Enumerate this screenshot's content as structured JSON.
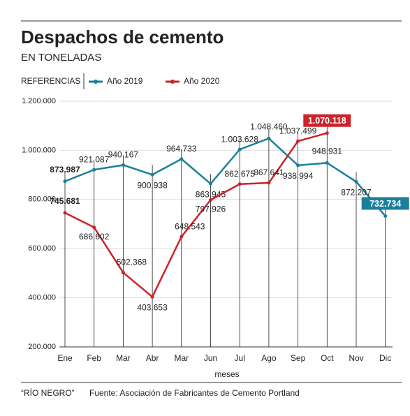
{
  "chart_data": {
    "type": "line",
    "title": "Despachos de cemento",
    "subtitle": "EN TONELADAS",
    "legend_title": "REFERENCIAS",
    "x_label": "meses",
    "notes": [
      "“RÍO NEGRO”",
      "Fuente: Asociación de Fabricantes de Cemento Portland"
    ],
    "categories": [
      "Ene",
      "Feb",
      "Mar",
      "Abr",
      "Mar",
      "Jun",
      "Jul",
      "Ago",
      "Sep",
      "Oct",
      "Nov",
      "Dic"
    ],
    "series": [
      {
        "name": "Año 2019",
        "color": "#1a7f9a",
        "values": [
          873987,
          921087,
          940167,
          900938,
          964733,
          863945,
          1003628,
          1048460,
          938994,
          948931,
          872207,
          732734
        ],
        "value_labels": [
          "873.987",
          "921.087",
          "940.167",
          "900.938",
          "964.733",
          "863.945",
          "1.003.628",
          "1.048.460",
          "938.994",
          "948.931",
          "872.207",
          "732.734"
        ]
      },
      {
        "name": "Año 2020",
        "color": "#cc2229",
        "values": [
          745681,
          686602,
          502368,
          403653,
          648543,
          797926,
          862675,
          867641,
          1037499,
          1070118,
          null,
          null
        ],
        "value_labels": [
          "745.681",
          "686.602",
          "502.368",
          "403.653",
          "648.543",
          "797.926",
          "862.675",
          "867.641",
          "1.037.499",
          "1.070.118",
          null,
          null
        ]
      }
    ],
    "ylim": [
      200000,
      1200000
    ],
    "yticks": [
      {
        "value": 200000,
        "label": "200.000"
      },
      {
        "value": 400000,
        "label": "400.000"
      },
      {
        "value": 600000,
        "label": "600.000"
      },
      {
        "value": 800000,
        "label": "800.000"
      },
      {
        "value": 1000000,
        "label": "1.000.000"
      },
      {
        "value": 1200000,
        "label": "1.200.000"
      }
    ],
    "grid": true
  }
}
